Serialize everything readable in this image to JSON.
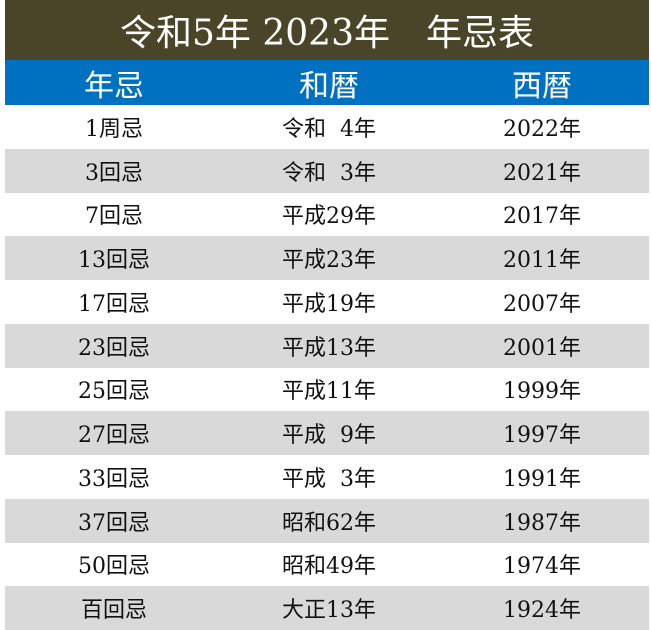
{
  "title": "令和5年 2023年　年忌表",
  "headers": [
    "年忌",
    "和暦",
    "西暦"
  ],
  "colors": {
    "title_bg": "#4a4428",
    "header_bg": "#0070c0",
    "stripe_bg": "#d9d9d9"
  },
  "rows": [
    {
      "memorial": "1周忌",
      "japanese_era": "令和  4年",
      "western_year": "2022年"
    },
    {
      "memorial": "3回忌",
      "japanese_era": "令和  3年",
      "western_year": "2021年"
    },
    {
      "memorial": "7回忌",
      "japanese_era": "平成29年",
      "western_year": "2017年"
    },
    {
      "memorial": "13回忌",
      "japanese_era": "平成23年",
      "western_year": "2011年"
    },
    {
      "memorial": "17回忌",
      "japanese_era": "平成19年",
      "western_year": "2007年"
    },
    {
      "memorial": "23回忌",
      "japanese_era": "平成13年",
      "western_year": "2001年"
    },
    {
      "memorial": "25回忌",
      "japanese_era": "平成11年",
      "western_year": "1999年"
    },
    {
      "memorial": "27回忌",
      "japanese_era": "平成  9年",
      "western_year": "1997年"
    },
    {
      "memorial": "33回忌",
      "japanese_era": "平成  3年",
      "western_year": "1991年"
    },
    {
      "memorial": "37回忌",
      "japanese_era": "昭和62年",
      "western_year": "1987年"
    },
    {
      "memorial": "50回忌",
      "japanese_era": "昭和49年",
      "western_year": "1974年"
    },
    {
      "memorial": "百回忌",
      "japanese_era": "大正13年",
      "western_year": "1924年"
    }
  ]
}
